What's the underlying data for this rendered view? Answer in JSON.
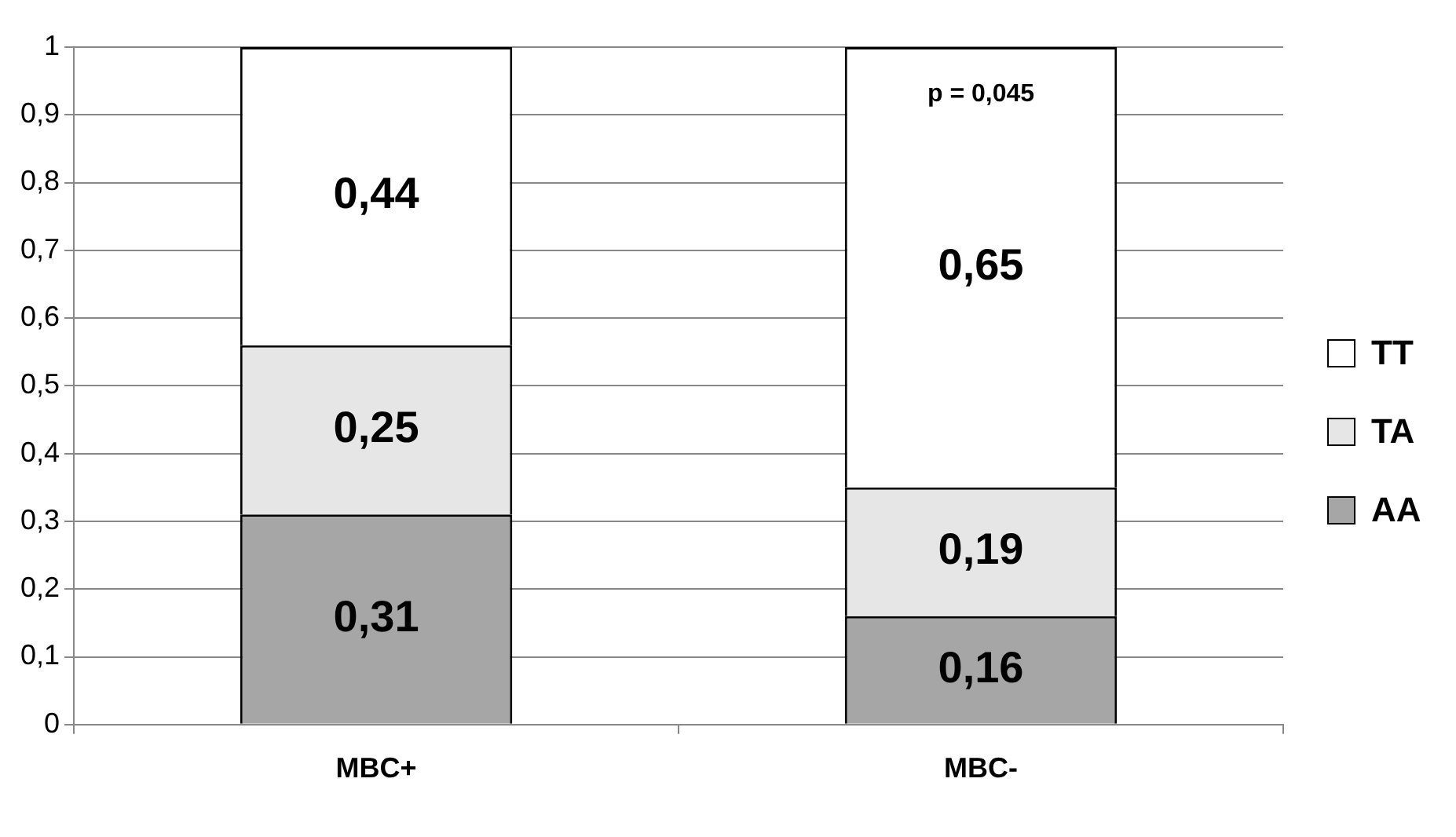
{
  "chart_data": {
    "type": "bar",
    "stacked": true,
    "categories": [
      "MBC+",
      "MBC-"
    ],
    "series": [
      {
        "name": "AA",
        "color": "#a6a6a6",
        "values": [
          0.31,
          0.16
        ],
        "value_labels": [
          "0,31",
          "0,16"
        ]
      },
      {
        "name": "TA",
        "color": "#e6e6e6",
        "values": [
          0.25,
          0.19
        ],
        "value_labels": [
          "0,25",
          "0,19"
        ]
      },
      {
        "name": "TT",
        "color": "#ffffff",
        "values": [
          0.44,
          0.65
        ],
        "value_labels": [
          "0,44",
          "0,65"
        ]
      }
    ],
    "ylim": [
      0,
      1
    ],
    "yticks": [
      0,
      {
        "value": 0.1,
        "label": "0,1"
      },
      {
        "value": 0.2,
        "label": "0,2"
      },
      {
        "value": 0.3,
        "label": "0,3"
      },
      {
        "value": 0.4,
        "label": "0,4"
      },
      {
        "value": 0.5,
        "label": "0,5"
      },
      {
        "value": 0.6,
        "label": "0,6"
      },
      {
        "value": 0.7,
        "label": "0,7"
      },
      {
        "value": 0.8,
        "label": "0,8"
      },
      {
        "value": 0.9,
        "label": "0,9"
      },
      1
    ],
    "grid": "y",
    "legend": "right",
    "annotations": [
      "p = 0,045"
    ]
  }
}
